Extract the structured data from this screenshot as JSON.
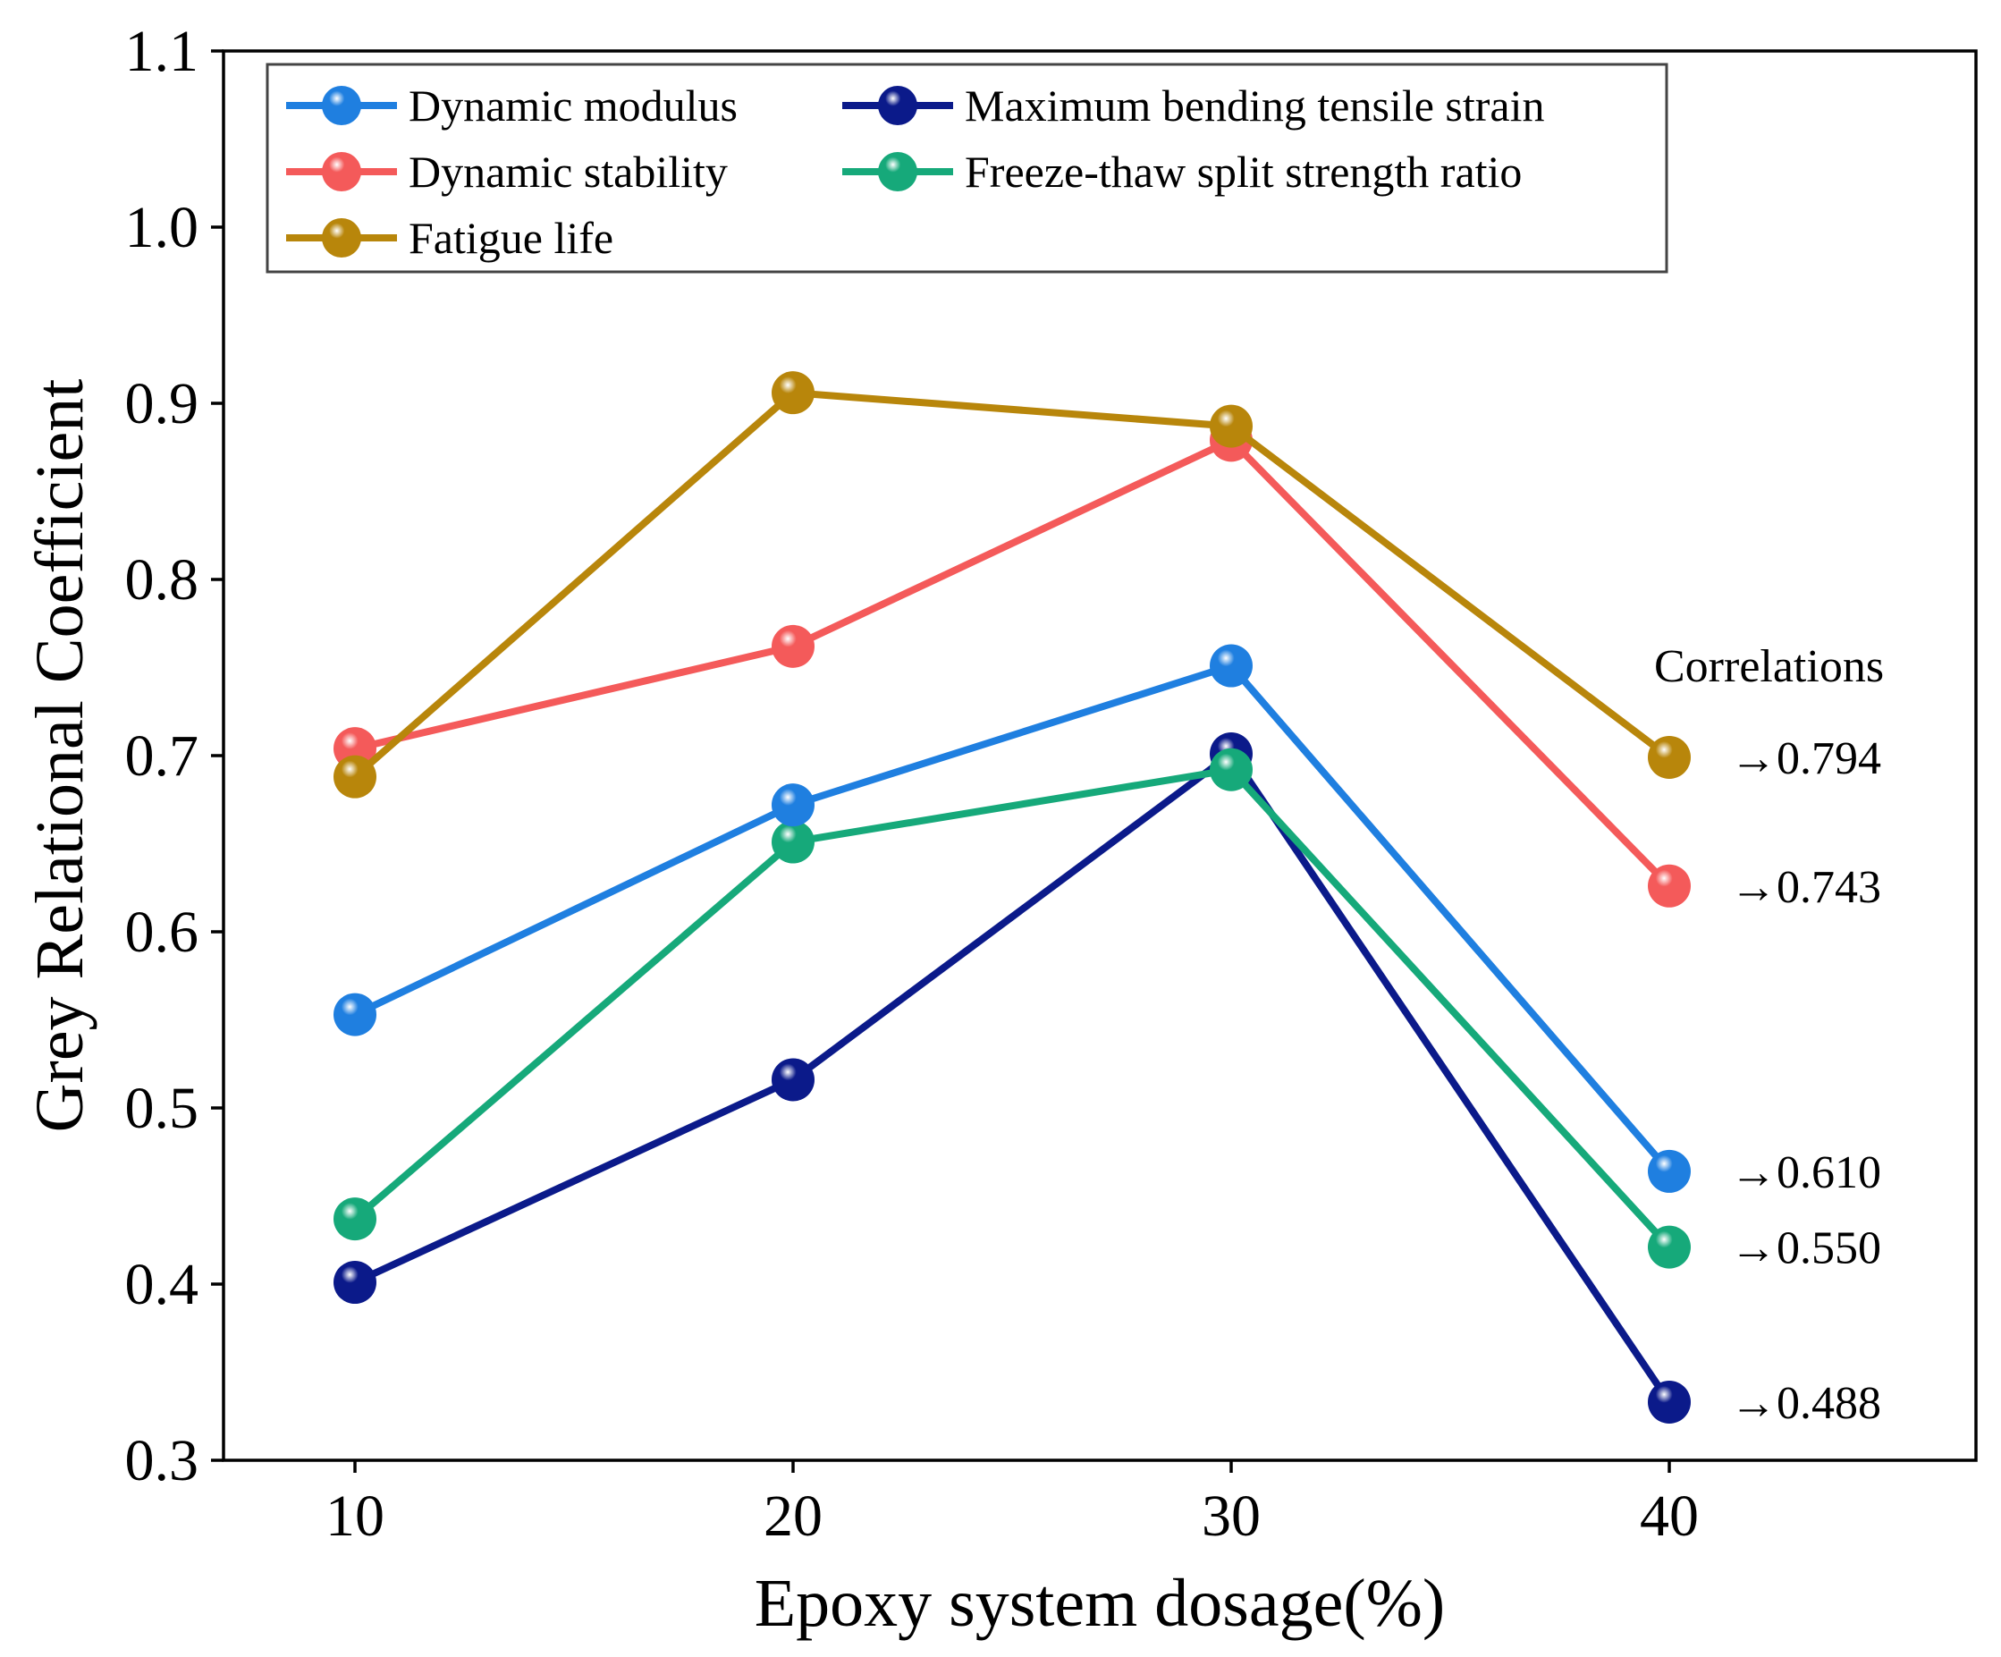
{
  "chart_data": {
    "type": "line",
    "title": "",
    "xlabel": "Epoxy system dosage(%)",
    "ylabel": "Grey Relational Coefficient",
    "x": [
      10,
      20,
      30,
      40
    ],
    "xlim": [
      7,
      47
    ],
    "ylim": [
      0.3,
      1.1
    ],
    "xticks": [
      10,
      20,
      30,
      40
    ],
    "xtick_labels": [
      "10",
      "20",
      "30",
      "40"
    ],
    "yticks": [
      0.3,
      0.4,
      0.5,
      0.6,
      0.7,
      0.8,
      0.9,
      1.0,
      1.1
    ],
    "ytick_labels": [
      "0.3",
      "0.4",
      "0.5",
      "0.6",
      "0.7",
      "0.8",
      "0.9",
      "1.0",
      "1.1"
    ],
    "grid": false,
    "legend_position": "top",
    "series": [
      {
        "name": "Dynamic modulus",
        "color": "#1f7fe0",
        "values": [
          0.553,
          0.672,
          0.751,
          0.464
        ]
      },
      {
        "name": "Dynamic stability",
        "color": "#f45a5a",
        "values": [
          0.704,
          0.762,
          0.879,
          0.626
        ]
      },
      {
        "name": "Fatigue life",
        "color": "#b8860b",
        "values": [
          0.688,
          0.906,
          0.887,
          0.699
        ]
      },
      {
        "name": "Maximum bending tensile strain",
        "color": "#0b1a8a",
        "values": [
          0.401,
          0.516,
          0.701,
          0.333
        ]
      },
      {
        "name": "Freeze-thaw split strength ratio",
        "color": "#16a97a",
        "values": [
          0.437,
          0.651,
          0.692,
          0.421
        ]
      }
    ],
    "annotations": {
      "header": "Correlations",
      "items": [
        {
          "series": "Fatigue life",
          "label": "→0.794"
        },
        {
          "series": "Dynamic stability",
          "label": "→0.743"
        },
        {
          "series": "Dynamic modulus",
          "label": "→0.610"
        },
        {
          "series": "Freeze-thaw split strength ratio",
          "label": "→0.550"
        },
        {
          "series": "Maximum bending tensile strain",
          "label": "→0.488"
        }
      ]
    }
  }
}
